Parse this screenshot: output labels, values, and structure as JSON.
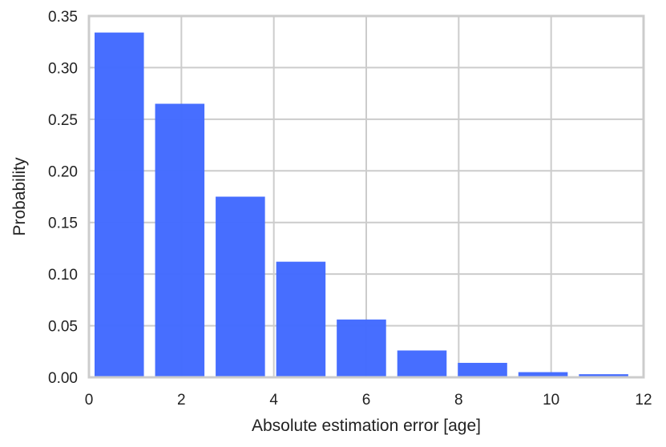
{
  "chart_data": {
    "type": "bar",
    "xlabel": "Absolute estimation error [age]",
    "ylabel": "Probability",
    "xlim": [
      0,
      12
    ],
    "ylim": [
      0,
      0.35
    ],
    "xticks": [
      0,
      2,
      4,
      6,
      8,
      10,
      12
    ],
    "yticks": [
      0.0,
      0.05,
      0.1,
      0.15,
      0.2,
      0.25,
      0.3,
      0.35
    ],
    "grid": true,
    "bar_color": "#4169ff",
    "bins": [
      {
        "x0": 0.0,
        "x1": 1.31,
        "value": 0.334
      },
      {
        "x0": 1.31,
        "x1": 2.62,
        "value": 0.265
      },
      {
        "x0": 2.62,
        "x1": 3.93,
        "value": 0.175
      },
      {
        "x0": 3.93,
        "x1": 5.24,
        "value": 0.112
      },
      {
        "x0": 5.24,
        "x1": 6.55,
        "value": 0.056
      },
      {
        "x0": 6.55,
        "x1": 7.86,
        "value": 0.026
      },
      {
        "x0": 7.86,
        "x1": 9.17,
        "value": 0.014
      },
      {
        "x0": 9.17,
        "x1": 10.48,
        "value": 0.005
      },
      {
        "x0": 10.48,
        "x1": 11.79,
        "value": 0.003
      }
    ]
  }
}
